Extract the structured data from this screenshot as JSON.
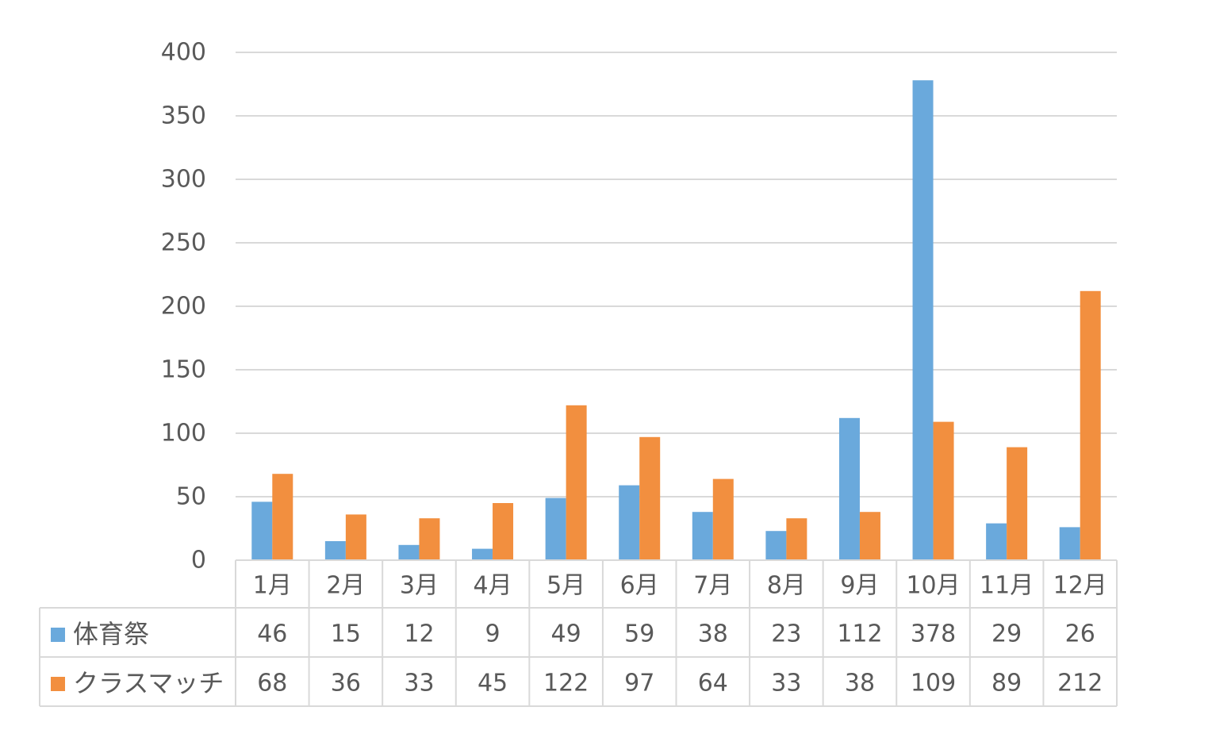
{
  "chart_data": {
    "type": "bar",
    "title": "",
    "xlabel": "",
    "ylabel": "",
    "ylim": [
      0,
      400
    ],
    "yticks": [
      0,
      50,
      100,
      150,
      200,
      250,
      300,
      350,
      400
    ],
    "grid": true,
    "legend": "data-table",
    "categories": [
      "1月",
      "2月",
      "3月",
      "4月",
      "5月",
      "6月",
      "7月",
      "8月",
      "9月",
      "10月",
      "11月",
      "12月"
    ],
    "series": [
      {
        "name": "体育祭",
        "color": "#6aa9dc",
        "values": [
          46,
          15,
          12,
          9,
          49,
          59,
          38,
          23,
          112,
          378,
          29,
          26
        ]
      },
      {
        "name": "クラスマッチ",
        "color": "#f28f3f",
        "values": [
          68,
          36,
          33,
          45,
          122,
          97,
          64,
          33,
          38,
          109,
          89,
          212
        ]
      }
    ]
  }
}
